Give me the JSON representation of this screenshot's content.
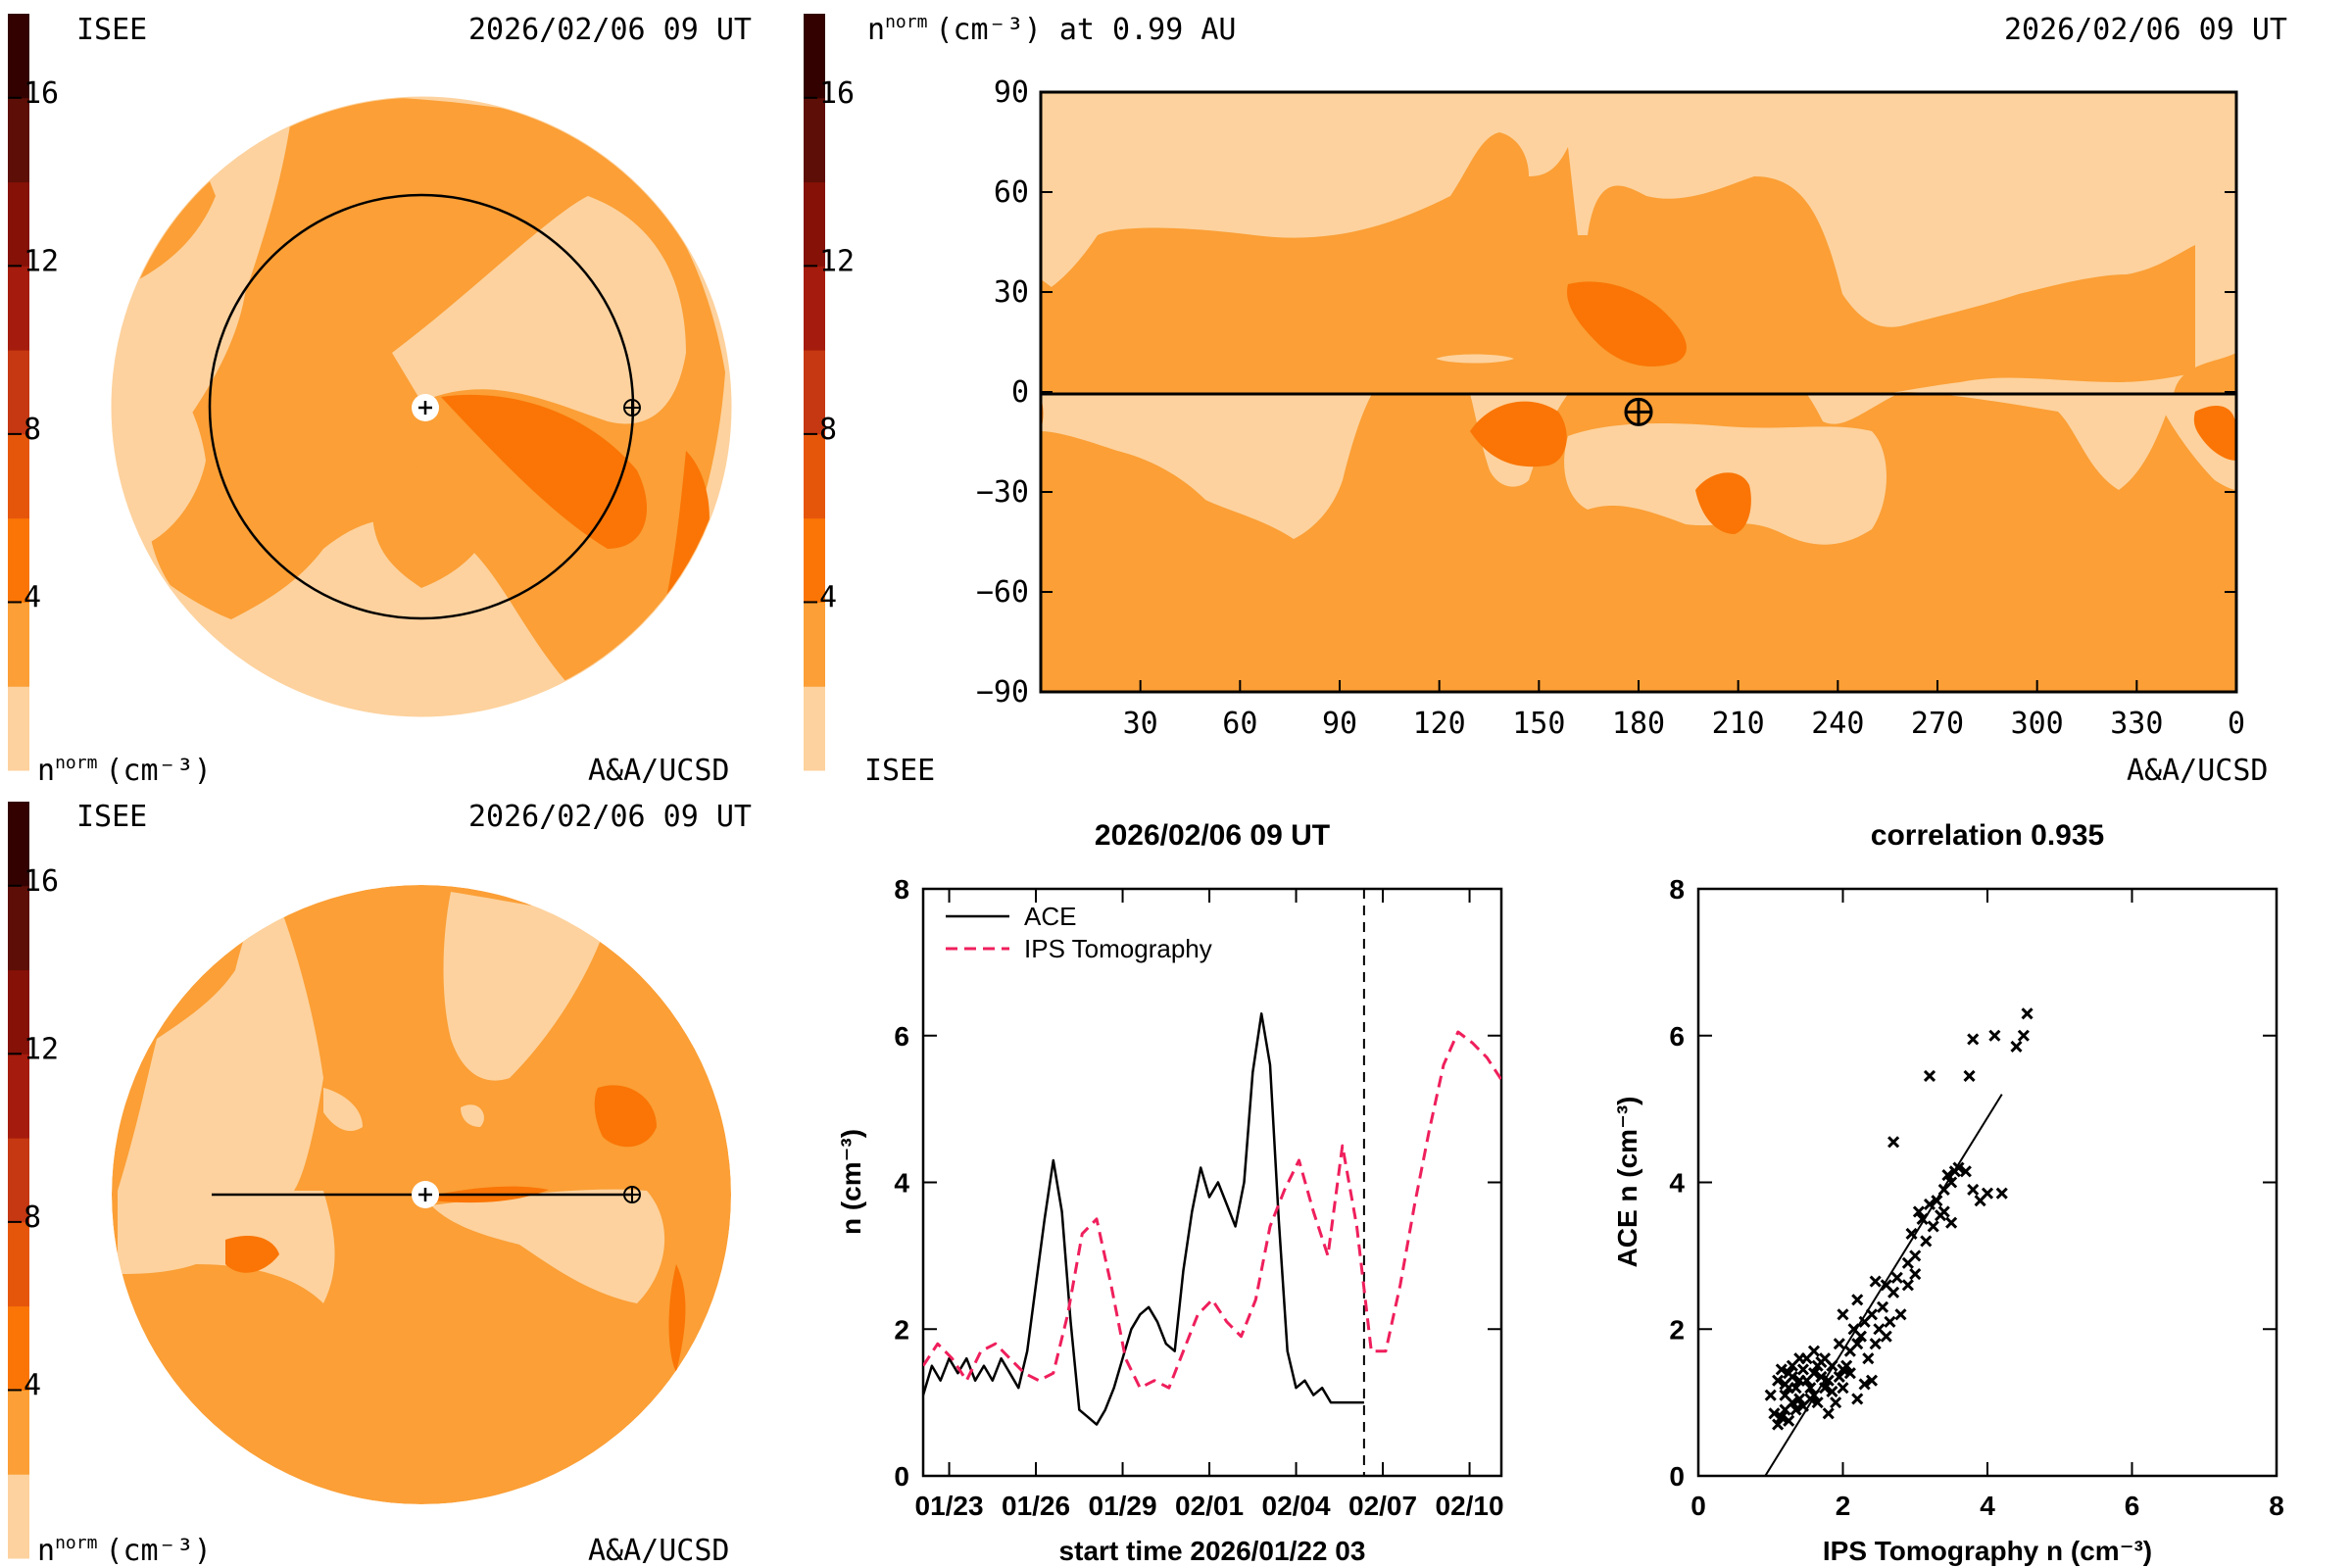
{
  "palette": {
    "colorbar_bands": [
      "#fdd29e",
      "#fb9f36",
      "#fa7505",
      "#e6560a",
      "#c53812",
      "#a51b0d",
      "#851107",
      "#5d0e06",
      "#330200"
    ],
    "band_light": "#fdd29e",
    "band_mid": "#fb9f36",
    "band_dark": "#fa7505",
    "ips_line": "#ef1f5c",
    "ace_line": "#000000"
  },
  "panels": {
    "top_left": {
      "label_left": "ISEE",
      "label_date": "2026/02/06 09 UT",
      "footer_unit": "n",
      "footer_unit_sup": "norm",
      "footer_unit_tail": "(cm⁻³)",
      "footer_credit": "A&A/UCSD",
      "colorbar_ticks": [
        "16",
        "12",
        "8",
        "4"
      ],
      "colorbar_range": [
        0,
        18
      ]
    },
    "bottom_left": {
      "label_left": "ISEE",
      "label_date": "2026/02/06 09 UT",
      "footer_unit": "n",
      "footer_unit_sup": "norm",
      "footer_unit_tail": "(cm⁻³)",
      "footer_credit": "A&A/UCSD",
      "colorbar_ticks": [
        "16",
        "12",
        "8",
        "4"
      ],
      "colorbar_range": [
        0,
        18
      ]
    },
    "top_right": {
      "title_n": "n",
      "title_sup": "norm",
      "title_tail": "(cm⁻³) at 0.99 AU",
      "label_date": "2026/02/06 09 UT",
      "footer_left": "ISEE",
      "footer_credit": "A&A/UCSD",
      "colorbar_ticks": [
        "16",
        "12",
        "8",
        "4"
      ],
      "y_ticks": [
        "90",
        "60",
        "30",
        "0",
        "−30",
        "−60",
        "−90"
      ],
      "x_ticks": [
        "30",
        "60",
        "90",
        "120",
        "150",
        "180",
        "210",
        "240",
        "270",
        "300",
        "330",
        "0"
      ],
      "earth_longitude": 180,
      "earth_latitude": -6
    }
  },
  "chart_data": [
    {
      "type": "line",
      "title": "2026/02/06 09 UT",
      "xlabel": "start time 2026/01/22 03",
      "ylabel": "n (cm⁻³)",
      "x_ticks": [
        "01/23",
        "01/26",
        "01/29",
        "02/01",
        "02/04",
        "02/07",
        "02/10"
      ],
      "x_tick_days": [
        0.9,
        3.9,
        6.9,
        9.9,
        12.9,
        15.9,
        18.9
      ],
      "y_ticks": [
        "0",
        "2",
        "4",
        "6",
        "8"
      ],
      "xlim_days": [
        0,
        20
      ],
      "ylim": [
        0,
        8
      ],
      "marker_day": 15.25,
      "legend": [
        "ACE",
        "IPS Tomography"
      ],
      "series": [
        {
          "name": "ACE",
          "style": "solid",
          "x": [
            0,
            0.3,
            0.6,
            0.9,
            1.2,
            1.5,
            1.8,
            2.1,
            2.4,
            2.7,
            3.0,
            3.3,
            3.6,
            3.9,
            4.2,
            4.5,
            4.8,
            5.1,
            5.4,
            5.7,
            6.0,
            6.3,
            6.6,
            6.9,
            7.2,
            7.5,
            7.8,
            8.1,
            8.4,
            8.7,
            9.0,
            9.3,
            9.6,
            9.9,
            10.2,
            10.5,
            10.8,
            11.1,
            11.4,
            11.7,
            12.0,
            12.3,
            12.6,
            12.9,
            13.2,
            13.5,
            13.8,
            14.1,
            14.4,
            14.7,
            15.0,
            15.25
          ],
          "values": [
            1.1,
            1.5,
            1.3,
            1.6,
            1.4,
            1.6,
            1.3,
            1.5,
            1.3,
            1.6,
            1.4,
            1.2,
            1.7,
            2.6,
            3.5,
            4.3,
            3.6,
            2.1,
            0.9,
            0.8,
            0.7,
            0.9,
            1.2,
            1.6,
            2.0,
            2.2,
            2.3,
            2.1,
            1.8,
            1.7,
            2.8,
            3.6,
            4.2,
            3.8,
            4.0,
            3.7,
            3.4,
            4.0,
            5.5,
            6.3,
            5.6,
            3.5,
            1.7,
            1.2,
            1.3,
            1.1,
            1.2,
            1.0,
            1.0,
            1.0,
            1.0,
            1.0
          ]
        },
        {
          "name": "IPS Tomography",
          "style": "dashed",
          "x": [
            0,
            0.5,
            1.0,
            1.5,
            2.0,
            2.5,
            3.0,
            3.5,
            4.0,
            4.5,
            5.0,
            5.5,
            6.0,
            6.5,
            7.0,
            7.5,
            8.0,
            8.5,
            9.0,
            9.5,
            10.0,
            10.5,
            11.0,
            11.5,
            12.0,
            12.5,
            13.0,
            13.5,
            14.0,
            14.5,
            15.0,
            15.5,
            16.0,
            16.5,
            17.0,
            17.5,
            18.0,
            18.5,
            19.0,
            19.5,
            20.0
          ],
          "values": [
            1.5,
            1.8,
            1.6,
            1.3,
            1.7,
            1.8,
            1.6,
            1.4,
            1.3,
            1.4,
            2.2,
            3.3,
            3.5,
            2.6,
            1.6,
            1.2,
            1.3,
            1.2,
            1.7,
            2.2,
            2.4,
            2.1,
            1.9,
            2.4,
            3.4,
            3.9,
            4.3,
            3.6,
            3.0,
            4.5,
            3.4,
            1.7,
            1.7,
            2.6,
            3.7,
            4.7,
            5.6,
            6.05,
            5.9,
            5.7,
            5.4
          ]
        }
      ]
    },
    {
      "type": "scatter",
      "title": "correlation 0.935",
      "xlabel": "IPS Tomography n (cm⁻³)",
      "ylabel": "ACE n (cm⁻³)",
      "x_ticks": [
        "0",
        "2",
        "4",
        "6",
        "8"
      ],
      "y_ticks": [
        "0",
        "2",
        "4",
        "6",
        "8"
      ],
      "xlim": [
        0,
        8
      ],
      "ylim": [
        0,
        8
      ],
      "fit_line": {
        "x": [
          0.8,
          4.2
        ],
        "y": [
          -0.2,
          5.2
        ]
      },
      "points": [
        [
          1.1,
          0.7
        ],
        [
          1.15,
          0.8
        ],
        [
          1.2,
          0.9
        ],
        [
          1.25,
          0.75
        ],
        [
          1.3,
          1.0
        ],
        [
          1.2,
          1.1
        ],
        [
          1.35,
          1.2
        ],
        [
          1.4,
          1.3
        ],
        [
          1.25,
          1.4
        ],
        [
          1.3,
          1.5
        ],
        [
          1.45,
          1.45
        ],
        [
          1.5,
          1.3
        ],
        [
          1.55,
          1.2
        ],
        [
          1.6,
          1.4
        ],
        [
          1.65,
          1.5
        ],
        [
          1.7,
          1.35
        ],
        [
          1.75,
          1.2
        ],
        [
          1.8,
          1.3
        ],
        [
          1.85,
          1.15
        ],
        [
          1.9,
          1.0
        ],
        [
          1.5,
          1.6
        ],
        [
          1.6,
          1.7
        ],
        [
          1.7,
          1.55
        ],
        [
          1.4,
          1.6
        ],
        [
          1.3,
          1.35
        ],
        [
          1.2,
          1.25
        ],
        [
          1.55,
          1.05
        ],
        [
          1.65,
          1.0
        ],
        [
          1.45,
          0.95
        ],
        [
          1.35,
          0.9
        ],
        [
          2.0,
          1.2
        ],
        [
          2.05,
          1.5
        ],
        [
          2.1,
          1.7
        ],
        [
          2.2,
          1.8
        ],
        [
          2.15,
          2.0
        ],
        [
          2.3,
          2.1
        ],
        [
          2.25,
          1.9
        ],
        [
          2.4,
          2.2
        ],
        [
          2.5,
          2.0
        ],
        [
          2.6,
          1.9
        ],
        [
          2.0,
          2.2
        ],
        [
          1.95,
          1.8
        ],
        [
          2.35,
          1.6
        ],
        [
          2.45,
          1.8
        ],
        [
          2.55,
          2.3
        ],
        [
          2.65,
          2.1
        ],
        [
          2.7,
          2.5
        ],
        [
          2.8,
          2.2
        ],
        [
          2.3,
          1.25
        ],
        [
          2.4,
          1.3
        ],
        [
          2.75,
          2.7
        ],
        [
          2.9,
          2.9
        ],
        [
          3.0,
          3.0
        ],
        [
          2.95,
          3.3
        ],
        [
          3.1,
          3.5
        ],
        [
          3.2,
          3.7
        ],
        [
          3.3,
          3.75
        ],
        [
          3.35,
          3.55
        ],
        [
          3.4,
          3.9
        ],
        [
          3.45,
          4.1
        ],
        [
          3.5,
          4.0
        ],
        [
          3.55,
          4.15
        ],
        [
          3.6,
          4.2
        ],
        [
          3.7,
          4.15
        ],
        [
          3.4,
          3.6
        ],
        [
          3.25,
          3.4
        ],
        [
          3.15,
          3.2
        ],
        [
          3.05,
          3.6
        ],
        [
          3.8,
          3.9
        ],
        [
          4.0,
          3.85
        ],
        [
          4.2,
          3.85
        ],
        [
          3.9,
          3.75
        ],
        [
          2.7,
          4.55
        ],
        [
          3.2,
          5.45
        ],
        [
          3.75,
          5.45
        ],
        [
          3.8,
          5.95
        ],
        [
          4.1,
          6.0
        ],
        [
          4.4,
          5.85
        ],
        [
          4.5,
          6.0
        ],
        [
          4.55,
          6.3
        ],
        [
          1.8,
          0.85
        ],
        [
          2.2,
          1.05
        ],
        [
          1.05,
          0.85
        ],
        [
          1.0,
          1.1
        ],
        [
          1.1,
          1.3
        ],
        [
          1.75,
          1.6
        ],
        [
          1.85,
          1.5
        ],
        [
          2.0,
          1.45
        ],
        [
          1.6,
          1.1
        ],
        [
          1.4,
          1.05
        ],
        [
          1.15,
          1.45
        ],
        [
          1.25,
          1.2
        ],
        [
          1.95,
          1.35
        ],
        [
          2.1,
          1.4
        ],
        [
          2.2,
          2.4
        ],
        [
          2.45,
          2.65
        ],
        [
          2.6,
          2.6
        ],
        [
          2.9,
          2.6
        ],
        [
          3.0,
          2.75
        ],
        [
          3.5,
          3.45
        ]
      ]
    }
  ]
}
